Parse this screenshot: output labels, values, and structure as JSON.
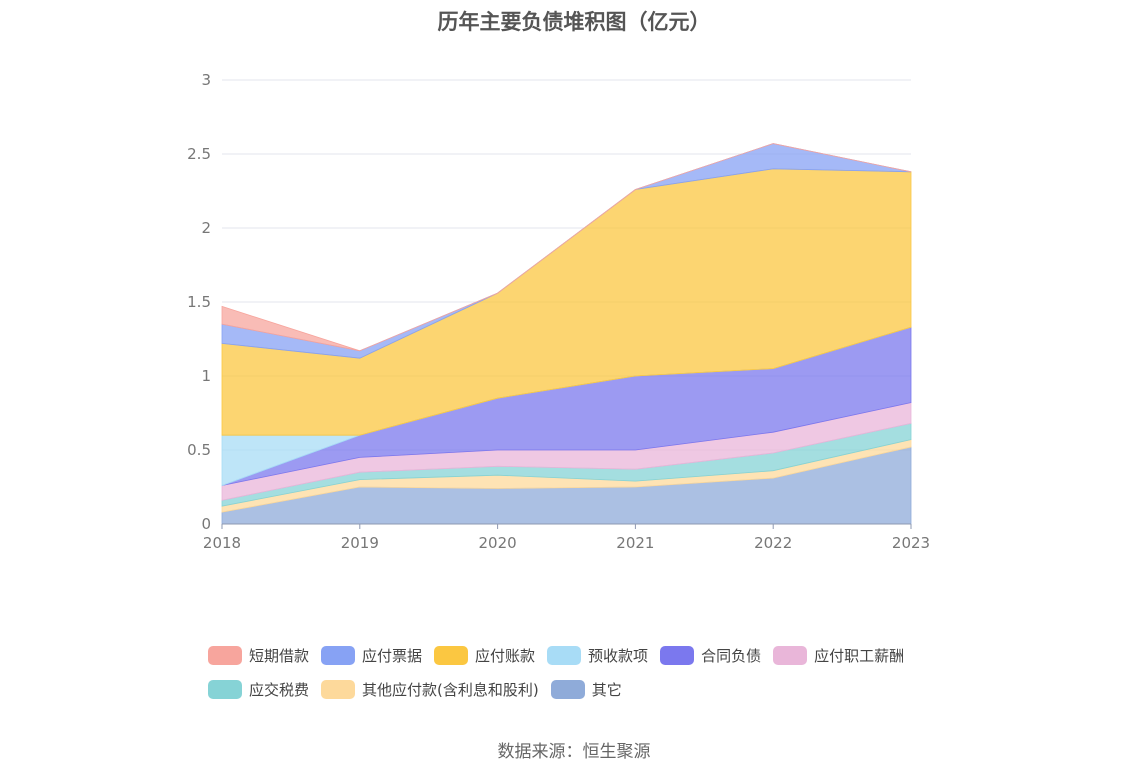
{
  "title": "历年主要负债堆积图（亿元）",
  "source": "数据来源：恒生聚源",
  "chart_data": {
    "type": "area",
    "stacked": true,
    "title": "历年主要负债堆积图（亿元）",
    "xlabel": "",
    "ylabel": "",
    "categories": [
      "2018",
      "2019",
      "2020",
      "2021",
      "2022",
      "2023"
    ],
    "ylim": [
      0,
      3
    ],
    "yticks": [
      "0",
      "0.5",
      "1",
      "1.5",
      "2",
      "2.5",
      "3"
    ],
    "grid": true,
    "legend_position": "bottom",
    "series": [
      {
        "name": "其它",
        "color": "#8fabd9",
        "values": [
          0.08,
          0.25,
          0.24,
          0.25,
          0.31,
          0.52
        ]
      },
      {
        "name": "其他应付款(含利息和股利)",
        "color": "#fdd99b",
        "values": [
          0.04,
          0.05,
          0.09,
          0.04,
          0.05,
          0.05
        ]
      },
      {
        "name": "应交税费",
        "color": "#86d3d6",
        "values": [
          0.04,
          0.05,
          0.06,
          0.08,
          0.12,
          0.11
        ]
      },
      {
        "name": "应付职工薪酬",
        "color": "#e9b6d9",
        "values": [
          0.1,
          0.1,
          0.11,
          0.13,
          0.14,
          0.14
        ]
      },
      {
        "name": "合同负债",
        "color": "#7b78ee",
        "values": [
          0.0,
          0.15,
          0.35,
          0.5,
          0.43,
          0.51
        ]
      },
      {
        "name": "预收款项",
        "color": "#a8dcf6",
        "values": [
          0.34,
          0.0,
          0.0,
          0.0,
          0.0,
          0.0
        ]
      },
      {
        "name": "应付账款",
        "color": "#fbc741",
        "values": [
          0.62,
          0.52,
          0.71,
          1.26,
          1.35,
          1.05
        ]
      },
      {
        "name": "应付票据",
        "color": "#87a2f4",
        "values": [
          0.13,
          0.05,
          0.0,
          0.0,
          0.17,
          0.0
        ]
      },
      {
        "name": "短期借款",
        "color": "#f7a59d",
        "values": [
          0.12,
          0.0,
          0.0,
          0.0,
          0.0,
          0.0
        ]
      }
    ]
  },
  "legend_order": [
    "短期借款",
    "应付票据",
    "应付账款",
    "预收款项",
    "合同负债",
    "应付职工薪酬",
    "应交税费",
    "其他应付款(含利息和股利)",
    "其它"
  ]
}
